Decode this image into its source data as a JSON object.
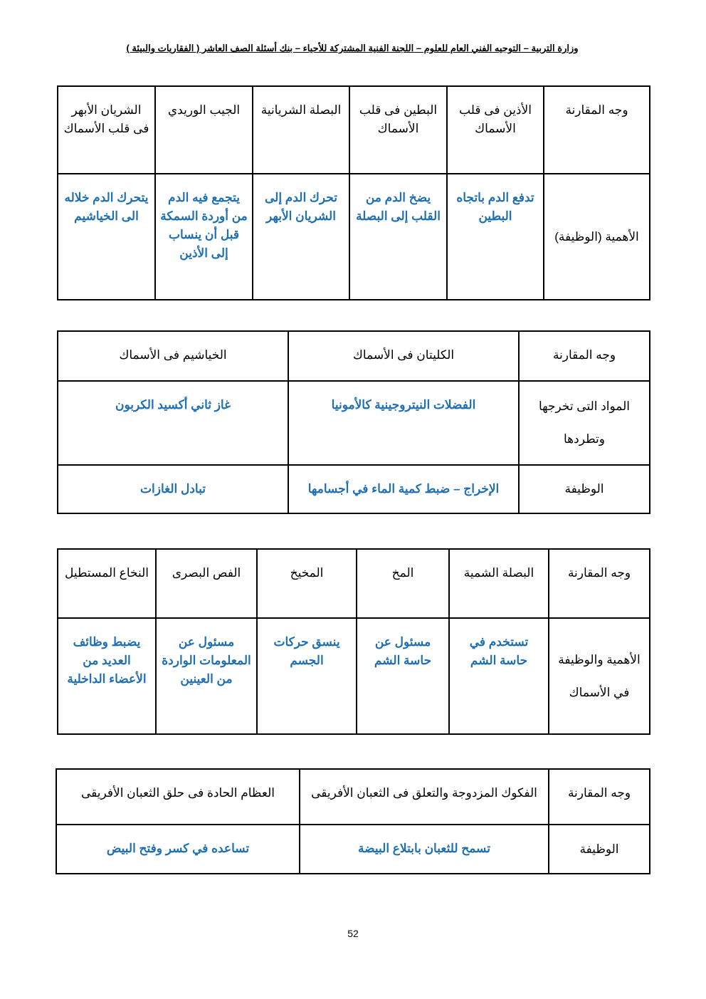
{
  "header": "وزارة التربية – التوجيه الفني العام للعلوم – اللجنة الفنية المشتركة للأحياء – بنك أسئلة الصف العاشر ( الفقاريات والبيئة )",
  "page_number": "52",
  "colors": {
    "answer": "#1f6fb5",
    "text": "#000000"
  },
  "tables": [
    {
      "rows": [
        [
          "وجه المقارنة",
          "الأذين فى قلب الأسماك",
          "البطين فى قلب الأسماك",
          "البصلة الشريانية",
          "الجيب الوريدي",
          "الشريان الأبهر فى قلب الأسماك"
        ],
        [
          "الأهمية (الوظيفة)",
          "تدفع الدم باتجاه البطين",
          "يضخ الدم من القلب إلى البصلة",
          "تحرك الدم إلى الشريان الأبهر",
          "يتجمع فيه الدم من أوردة السمكة قبل أن ينساب إلى الأذين",
          "يتحرك الدم خلاله الى الخياشيم"
        ]
      ]
    },
    {
      "rows": [
        [
          "وجه المقارنة",
          "الكليتان فى الأسماك",
          "الخياشيم فى الأسماك"
        ],
        [
          "المواد التى تخرجها وتطردها",
          "الفضلات النيتروجينية كالأمونيا",
          "غاز ثاني أكسيد الكربون"
        ],
        [
          "الوظيفة",
          "الإخراج – ضبط كمية الماء في أجسامها",
          "تبادل الغازات"
        ]
      ]
    },
    {
      "rows": [
        [
          "وجه المقارنة",
          "البصلة الشمية",
          "المخ",
          "المخيخ",
          "الفص البصرى",
          "النخاع المستطيل"
        ],
        [
          "الأهمية والوظيفة في الأسماك",
          "تستخدم في حاسة الشم",
          "مسئول عن حاسة الشم",
          "ينسق حركات الجسم",
          "مسئول عن المعلومات الواردة من العينين",
          "يضبط وظائف العديد من الأعضاء الداخلية"
        ]
      ]
    },
    {
      "rows": [
        [
          "وجه المقارنة",
          "الفكوك المزدوجة والتعلق فى الثعبان الأفريقى",
          "العظام الحادة فى حلق الثعبان الأفريقى"
        ],
        [
          "الوظيفة",
          "تسمح للثعبان بابتلاع البيضة",
          "تساعده في كسر وفتح البيض"
        ]
      ]
    }
  ]
}
